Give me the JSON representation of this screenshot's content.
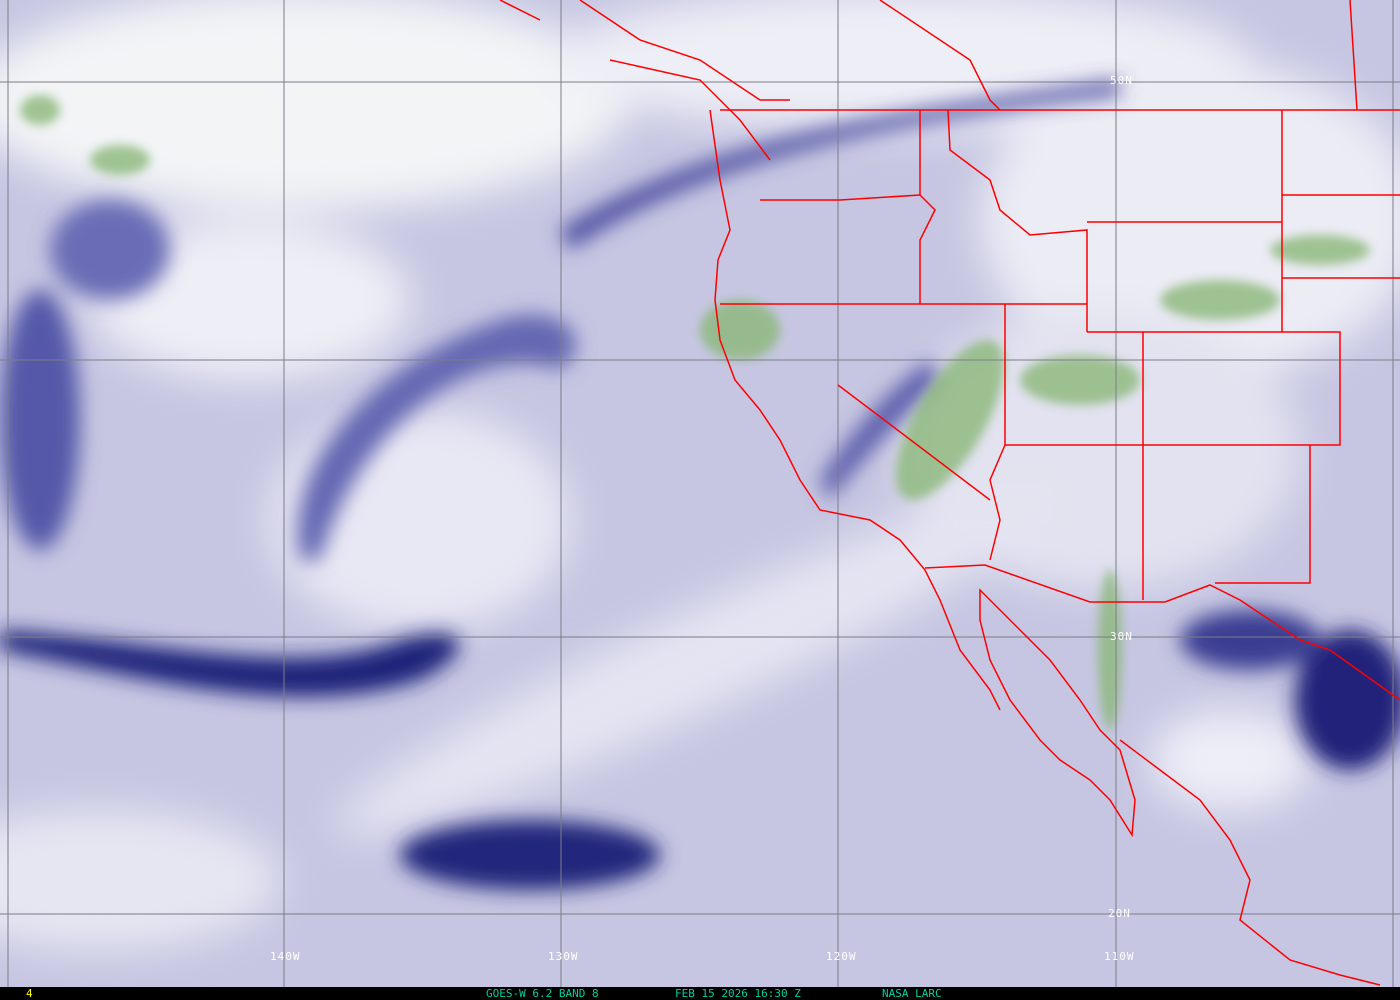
{
  "image": {
    "type": "satellite water vapor imagery",
    "colors": {
      "dry": "#1c1f78",
      "moist": "#f4f4fa",
      "mid": "#a9a9d4",
      "cloud_green": "#7fae6a",
      "borders": "#ff0000",
      "grid": "#808080",
      "caption": "#00d0a0",
      "frame": "#ffff00"
    }
  },
  "grid": {
    "longitude_labels": [
      "140W",
      "130W",
      "120W",
      "110W"
    ],
    "latitude_labels": [
      "50N",
      "30N",
      "20N"
    ]
  },
  "caption": {
    "frame_number": "4",
    "satellite": "GOES-W 6.2 BAND 8",
    "datetime": "FEB 15 2026 16:30 Z",
    "source": "NASA LARC"
  }
}
